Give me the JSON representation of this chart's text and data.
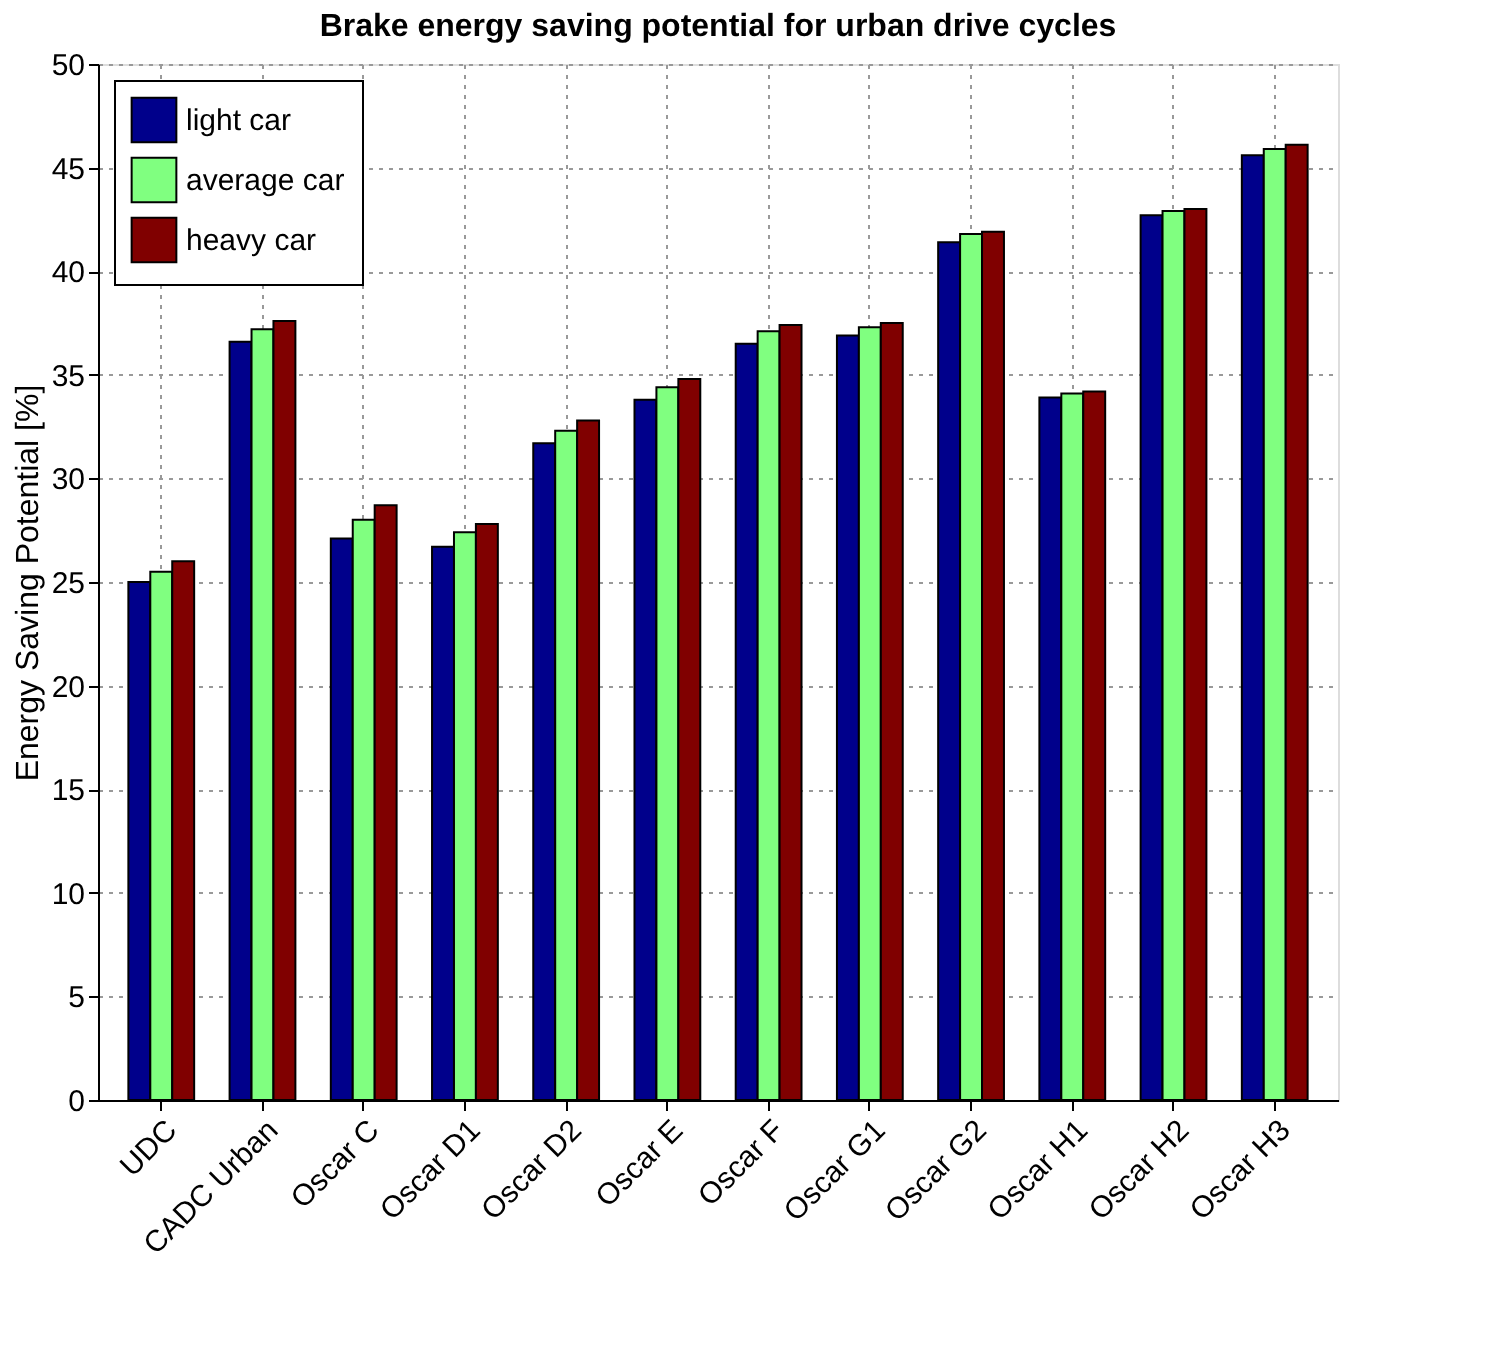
{
  "chart_data": {
    "type": "bar",
    "title": "Brake energy saving potential for urban drive cycles",
    "ylabel": "Energy Saving Potential [%]",
    "categories": [
      "UDC",
      "CADC Urban",
      "Oscar C",
      "Oscar D1",
      "Oscar D2",
      "Oscar E",
      "Oscar F",
      "Oscar G1",
      "Oscar G2",
      "Oscar H1",
      "Oscar H2",
      "Oscar H3"
    ],
    "series": [
      {
        "name": "light car",
        "color": "#00008b",
        "values": [
          25.0,
          36.6,
          27.1,
          26.7,
          31.7,
          33.8,
          36.5,
          36.9,
          41.4,
          33.9,
          42.7,
          45.6
        ]
      },
      {
        "name": "average car",
        "color": "#80ff80",
        "values": [
          25.5,
          37.2,
          28.0,
          27.4,
          32.3,
          34.4,
          37.1,
          37.3,
          41.8,
          34.1,
          42.9,
          45.9
        ]
      },
      {
        "name": "heavy car",
        "color": "#800000",
        "values": [
          26.0,
          37.6,
          28.7,
          27.8,
          32.8,
          34.8,
          37.4,
          37.5,
          41.9,
          34.2,
          43.0,
          46.1
        ]
      }
    ],
    "ylim": [
      0,
      50
    ],
    "yticks": [
      0,
      5,
      10,
      15,
      20,
      25,
      30,
      35,
      40,
      45,
      50
    ],
    "grid": true,
    "legend": "top left"
  }
}
